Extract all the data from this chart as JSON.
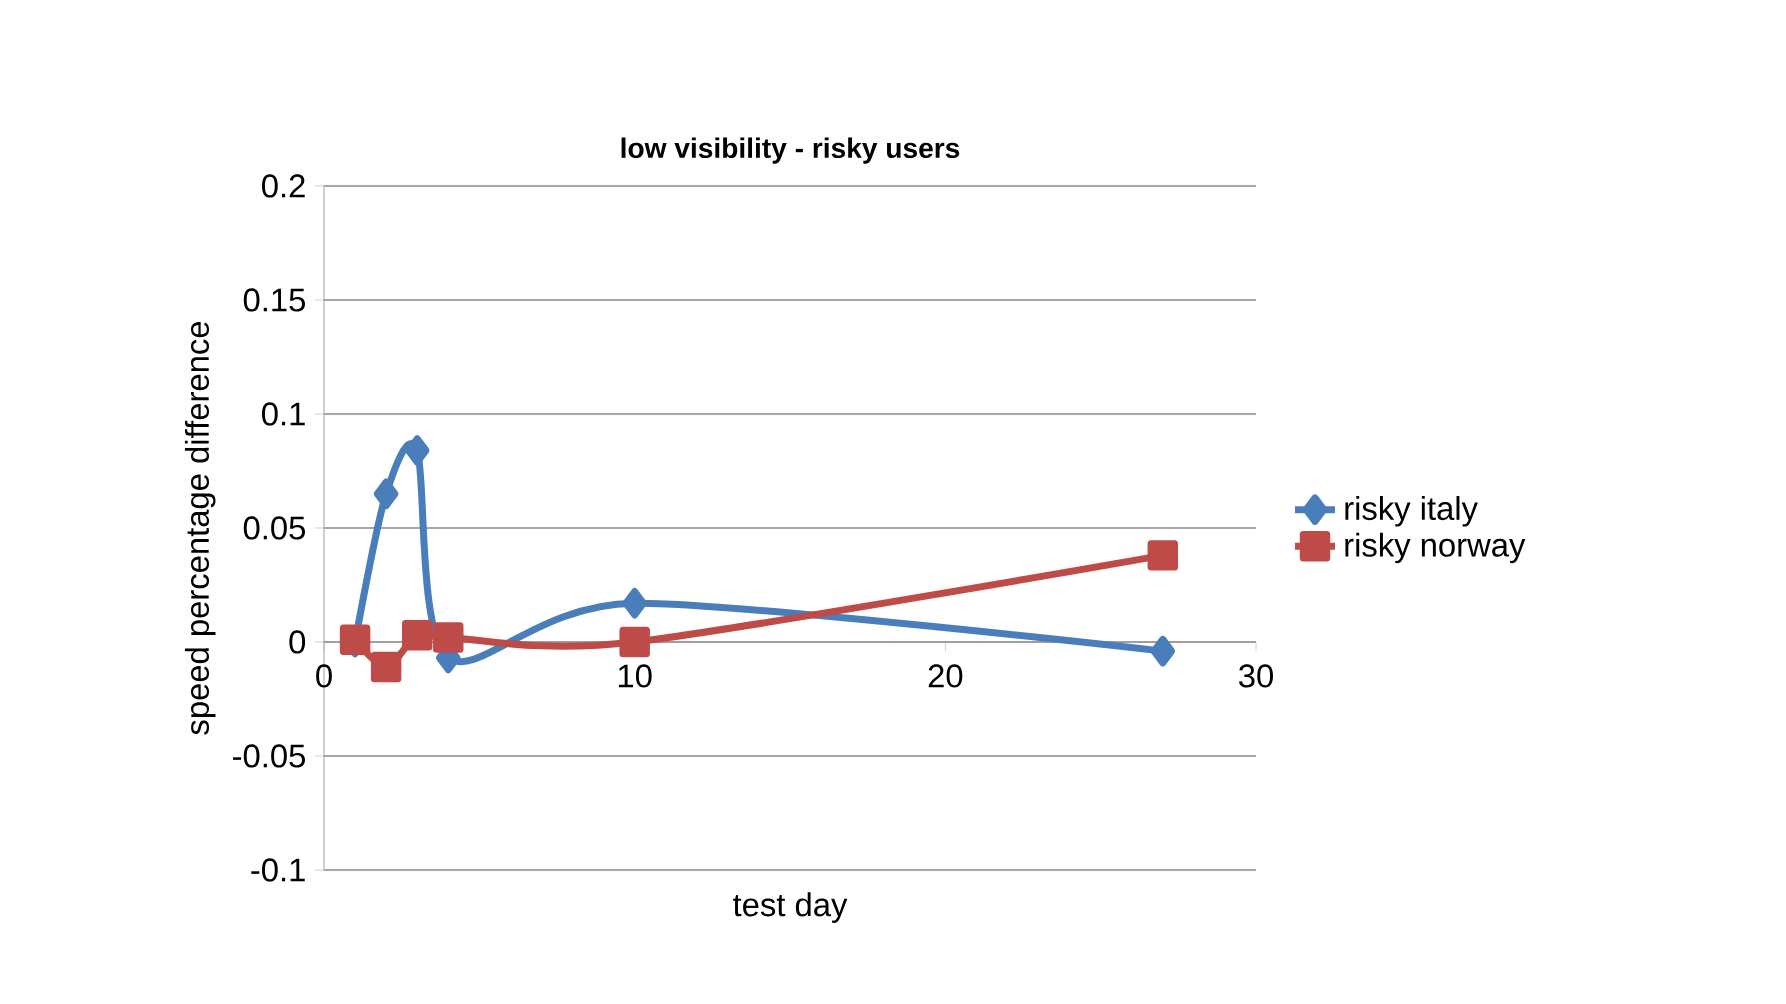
{
  "chart_data": {
    "type": "line",
    "title": "low visibility - risky users",
    "xlabel": "test day",
    "ylabel": "speed percentage difference",
    "xlim": [
      0,
      30
    ],
    "xticks": [
      0,
      10,
      20,
      30
    ],
    "ylim": [
      -0.1,
      0.2
    ],
    "yticks": [
      -0.1,
      -0.05,
      0,
      0.05,
      0.1,
      0.15,
      0.2
    ],
    "grid": "y",
    "legend": "right",
    "series": [
      {
        "name": "risky italy",
        "color": "#4a7ebb",
        "marker": "diamond",
        "x": [
          1,
          2,
          3,
          4,
          10,
          27
        ],
        "values": [
          0.0,
          0.065,
          0.084,
          -0.007,
          0.017,
          -0.004
        ]
      },
      {
        "name": "risky norway",
        "color": "#be4b48",
        "marker": "square",
        "x": [
          1,
          2,
          3,
          4,
          10,
          27
        ],
        "values": [
          0.001,
          -0.011,
          0.003,
          0.002,
          0.0,
          0.038
        ]
      }
    ]
  }
}
